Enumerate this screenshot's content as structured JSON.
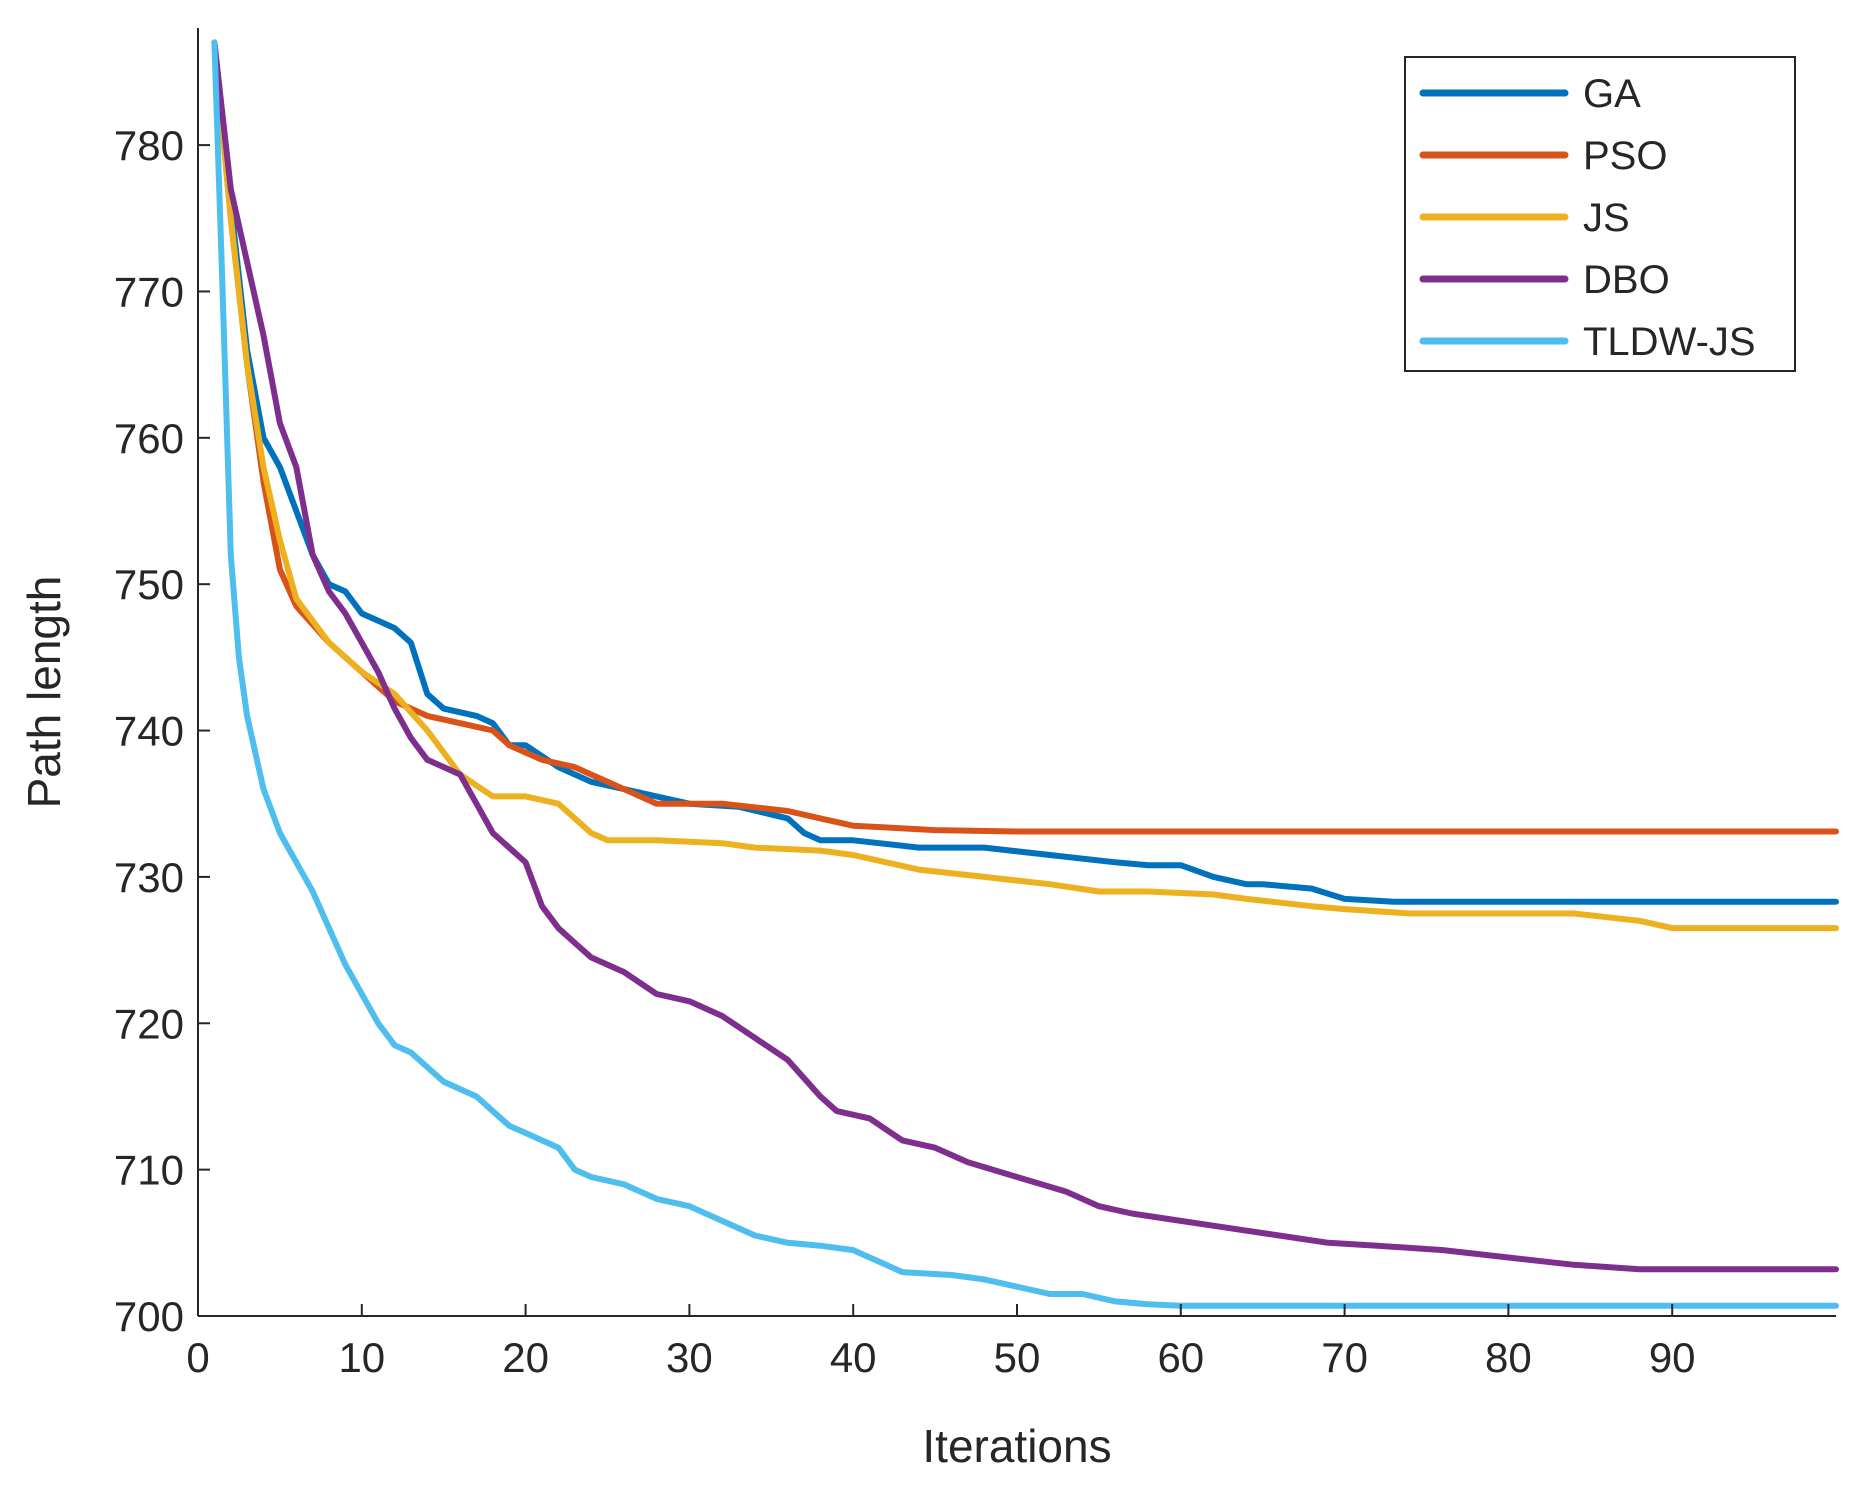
{
  "chart_data": {
    "type": "line",
    "title": "",
    "xlabel": "Iterations",
    "ylabel": "Path length",
    "xlim": [
      0,
      100
    ],
    "ylim": [
      700,
      788
    ],
    "xticks": [
      0,
      10,
      20,
      30,
      40,
      50,
      60,
      70,
      80,
      90
    ],
    "yticks": [
      700,
      710,
      720,
      730,
      740,
      750,
      760,
      770,
      780
    ],
    "grid": false,
    "legend_position": "top-right",
    "series": [
      {
        "name": "GA",
        "color": "#0072BD",
        "points": [
          [
            1,
            787
          ],
          [
            2,
            776
          ],
          [
            3,
            766
          ],
          [
            4,
            760
          ],
          [
            5,
            758
          ],
          [
            6,
            755
          ],
          [
            7,
            752
          ],
          [
            8,
            750
          ],
          [
            9,
            749.5
          ],
          [
            10,
            748
          ],
          [
            11,
            747.5
          ],
          [
            12,
            747
          ],
          [
            13,
            746
          ],
          [
            14,
            742.5
          ],
          [
            15,
            741.5
          ],
          [
            17,
            741
          ],
          [
            18,
            740.5
          ],
          [
            19,
            739
          ],
          [
            20,
            739
          ],
          [
            22,
            737.5
          ],
          [
            24,
            736.5
          ],
          [
            26,
            736
          ],
          [
            28,
            735.5
          ],
          [
            30,
            735
          ],
          [
            33,
            734.8
          ],
          [
            36,
            734
          ],
          [
            37,
            733
          ],
          [
            38,
            732.5
          ],
          [
            40,
            732.5
          ],
          [
            44,
            732
          ],
          [
            48,
            732
          ],
          [
            52,
            731.5
          ],
          [
            56,
            731
          ],
          [
            58,
            730.8
          ],
          [
            60,
            730.8
          ],
          [
            62,
            730
          ],
          [
            64,
            729.5
          ],
          [
            65,
            729.5
          ],
          [
            68,
            729.2
          ],
          [
            70,
            728.5
          ],
          [
            73,
            728.3
          ],
          [
            80,
            728.3
          ],
          [
            90,
            728.3
          ],
          [
            100,
            728.3
          ]
        ]
      },
      {
        "name": "PSO",
        "color": "#D95319",
        "points": [
          [
            1,
            787
          ],
          [
            2,
            775
          ],
          [
            3,
            765
          ],
          [
            4,
            757
          ],
          [
            5,
            751
          ],
          [
            6,
            748.5
          ],
          [
            8,
            746
          ],
          [
            10,
            744
          ],
          [
            12,
            742
          ],
          [
            14,
            741
          ],
          [
            16,
            740.5
          ],
          [
            18,
            740
          ],
          [
            19,
            739
          ],
          [
            20,
            738.5
          ],
          [
            21,
            738
          ],
          [
            23,
            737.5
          ],
          [
            24,
            737
          ],
          [
            25,
            736.5
          ],
          [
            27,
            735.5
          ],
          [
            28,
            735
          ],
          [
            32,
            735
          ],
          [
            36,
            734.5
          ],
          [
            38,
            734
          ],
          [
            40,
            733.5
          ],
          [
            45,
            733.2
          ],
          [
            50,
            733.1
          ],
          [
            60,
            733.1
          ],
          [
            70,
            733.1
          ],
          [
            80,
            733.1
          ],
          [
            90,
            733.1
          ],
          [
            100,
            733.1
          ]
        ]
      },
      {
        "name": "JS",
        "color": "#EDB120",
        "points": [
          [
            1,
            787
          ],
          [
            2,
            775
          ],
          [
            3,
            765
          ],
          [
            4,
            758
          ],
          [
            5,
            753
          ],
          [
            6,
            749
          ],
          [
            8,
            746
          ],
          [
            10,
            744
          ],
          [
            12,
            742.5
          ],
          [
            14,
            740
          ],
          [
            16,
            737
          ],
          [
            18,
            735.5
          ],
          [
            20,
            735.5
          ],
          [
            22,
            735
          ],
          [
            24,
            733
          ],
          [
            25,
            732.5
          ],
          [
            28,
            732.5
          ],
          [
            32,
            732.3
          ],
          [
            34,
            732
          ],
          [
            38,
            731.8
          ],
          [
            40,
            731.5
          ],
          [
            44,
            730.5
          ],
          [
            48,
            730
          ],
          [
            52,
            729.5
          ],
          [
            55,
            729
          ],
          [
            58,
            729
          ],
          [
            62,
            728.8
          ],
          [
            64,
            728.5
          ],
          [
            68,
            728
          ],
          [
            70,
            727.8
          ],
          [
            74,
            727.5
          ],
          [
            80,
            727.5
          ],
          [
            84,
            727.5
          ],
          [
            88,
            727
          ],
          [
            90,
            726.5
          ],
          [
            95,
            726.5
          ],
          [
            100,
            726.5
          ]
        ]
      },
      {
        "name": "DBO",
        "color": "#7E2F8E",
        "points": [
          [
            1,
            787
          ],
          [
            2,
            777
          ],
          [
            3,
            772
          ],
          [
            4,
            767
          ],
          [
            5,
            761
          ],
          [
            6,
            758
          ],
          [
            7,
            752
          ],
          [
            8,
            749.5
          ],
          [
            9,
            748
          ],
          [
            10,
            746
          ],
          [
            11,
            744
          ],
          [
            12,
            741.5
          ],
          [
            13,
            739.5
          ],
          [
            14,
            738
          ],
          [
            15,
            737.5
          ],
          [
            16,
            737
          ],
          [
            17,
            735
          ],
          [
            18,
            733
          ],
          [
            20,
            731
          ],
          [
            21,
            728
          ],
          [
            22,
            726.5
          ],
          [
            23,
            725.5
          ],
          [
            24,
            724.5
          ],
          [
            26,
            723.5
          ],
          [
            28,
            722
          ],
          [
            30,
            721.5
          ],
          [
            32,
            720.5
          ],
          [
            34,
            719
          ],
          [
            36,
            717.5
          ],
          [
            38,
            715
          ],
          [
            39,
            714
          ],
          [
            41,
            713.5
          ],
          [
            43,
            712
          ],
          [
            45,
            711.5
          ],
          [
            47,
            710.5
          ],
          [
            50,
            709.5
          ],
          [
            53,
            708.5
          ],
          [
            55,
            707.5
          ],
          [
            57,
            707
          ],
          [
            60,
            706.5
          ],
          [
            63,
            706
          ],
          [
            66,
            705.5
          ],
          [
            69,
            705
          ],
          [
            72,
            704.8
          ],
          [
            76,
            704.5
          ],
          [
            80,
            704
          ],
          [
            84,
            703.5
          ],
          [
            88,
            703.2
          ],
          [
            90,
            703.2
          ],
          [
            95,
            703.2
          ],
          [
            100,
            703.2
          ]
        ]
      },
      {
        "name": "TLDW-JS",
        "color": "#4DBEEE",
        "points": [
          [
            1,
            787
          ],
          [
            1.5,
            770
          ],
          [
            2,
            752
          ],
          [
            2.5,
            745
          ],
          [
            3,
            741
          ],
          [
            4,
            736
          ],
          [
            5,
            733
          ],
          [
            6,
            731
          ],
          [
            7,
            729
          ],
          [
            8,
            726.5
          ],
          [
            9,
            724
          ],
          [
            10,
            722
          ],
          [
            11,
            720
          ],
          [
            12,
            718.5
          ],
          [
            13,
            718
          ],
          [
            14,
            717
          ],
          [
            15,
            716
          ],
          [
            17,
            715
          ],
          [
            18,
            714
          ],
          [
            19,
            713
          ],
          [
            20,
            712.5
          ],
          [
            21,
            712
          ],
          [
            22,
            711.5
          ],
          [
            23,
            710
          ],
          [
            24,
            709.5
          ],
          [
            26,
            709
          ],
          [
            28,
            708
          ],
          [
            30,
            707.5
          ],
          [
            32,
            706.5
          ],
          [
            34,
            705.5
          ],
          [
            36,
            705
          ],
          [
            38,
            704.8
          ],
          [
            40,
            704.5
          ],
          [
            42,
            703.5
          ],
          [
            43,
            703
          ],
          [
            46,
            702.8
          ],
          [
            48,
            702.5
          ],
          [
            50,
            702
          ],
          [
            52,
            701.5
          ],
          [
            54,
            701.5
          ],
          [
            56,
            701
          ],
          [
            58,
            700.8
          ],
          [
            60,
            700.7
          ],
          [
            70,
            700.7
          ],
          [
            80,
            700.7
          ],
          [
            90,
            700.7
          ],
          [
            100,
            700.7
          ]
        ]
      }
    ]
  }
}
